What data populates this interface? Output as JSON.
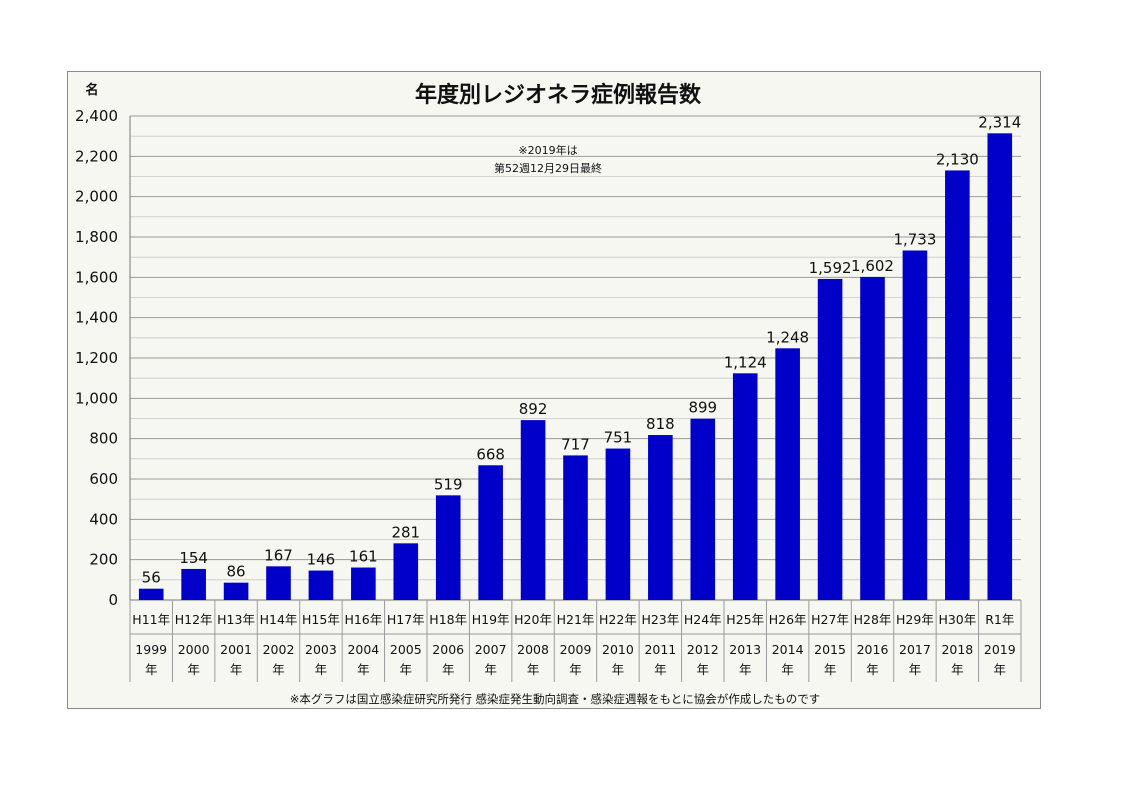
{
  "chart_data": {
    "type": "bar",
    "title": "年度別レジオネラ症例報告数",
    "unit_label": "名",
    "ylim": [
      0,
      2400
    ],
    "yticks": [
      "0",
      "200",
      "400",
      "600",
      "800",
      "1,000",
      "1,200",
      "1,400",
      "1,600",
      "1,800",
      "2,000",
      "2,200",
      "2,400"
    ],
    "ytick_values": [
      0,
      200,
      400,
      600,
      800,
      1000,
      1200,
      1400,
      1600,
      1800,
      2000,
      2200,
      2400
    ],
    "grid": true,
    "bar_color": "#0000c8",
    "categories": [
      "H11年",
      "H12年",
      "H13年",
      "H14年",
      "H15年",
      "H16年",
      "H17年",
      "H18年",
      "H19年",
      "H20年",
      "H21年",
      "H22年",
      "H23年",
      "H24年",
      "H25年",
      "H26年",
      "H27年",
      "H28年",
      "H29年",
      "H30年",
      "R1年"
    ],
    "years": [
      "1999",
      "2000",
      "2001",
      "2002",
      "2003",
      "2004",
      "2005",
      "2006",
      "2007",
      "2008",
      "2009",
      "2010",
      "2011",
      "2012",
      "2013",
      "2014",
      "2015",
      "2016",
      "2017",
      "2018",
      "2019"
    ],
    "year_suffix": "年",
    "values": [
      56,
      154,
      86,
      167,
      146,
      161,
      281,
      519,
      668,
      892,
      717,
      751,
      818,
      899,
      1124,
      1248,
      1592,
      1602,
      1733,
      2130,
      2314
    ],
    "value_labels": [
      "56",
      "154",
      "86",
      "167",
      "146",
      "161",
      "281",
      "519",
      "668",
      "892",
      "717",
      "751",
      "818",
      "899",
      "1,124",
      "1,248",
      "1,592",
      "1,602",
      "1,733",
      "2,130",
      "2,314"
    ],
    "highlight_label_color": "#e00000",
    "highlight_index": 20,
    "annotation": [
      "※2019年は",
      "第52週12月29日最終"
    ],
    "footnote": "※本グラフは国立感染症研究所発行 感染症発生動向調査・感染症週報をもとに協会が作成したものです"
  }
}
